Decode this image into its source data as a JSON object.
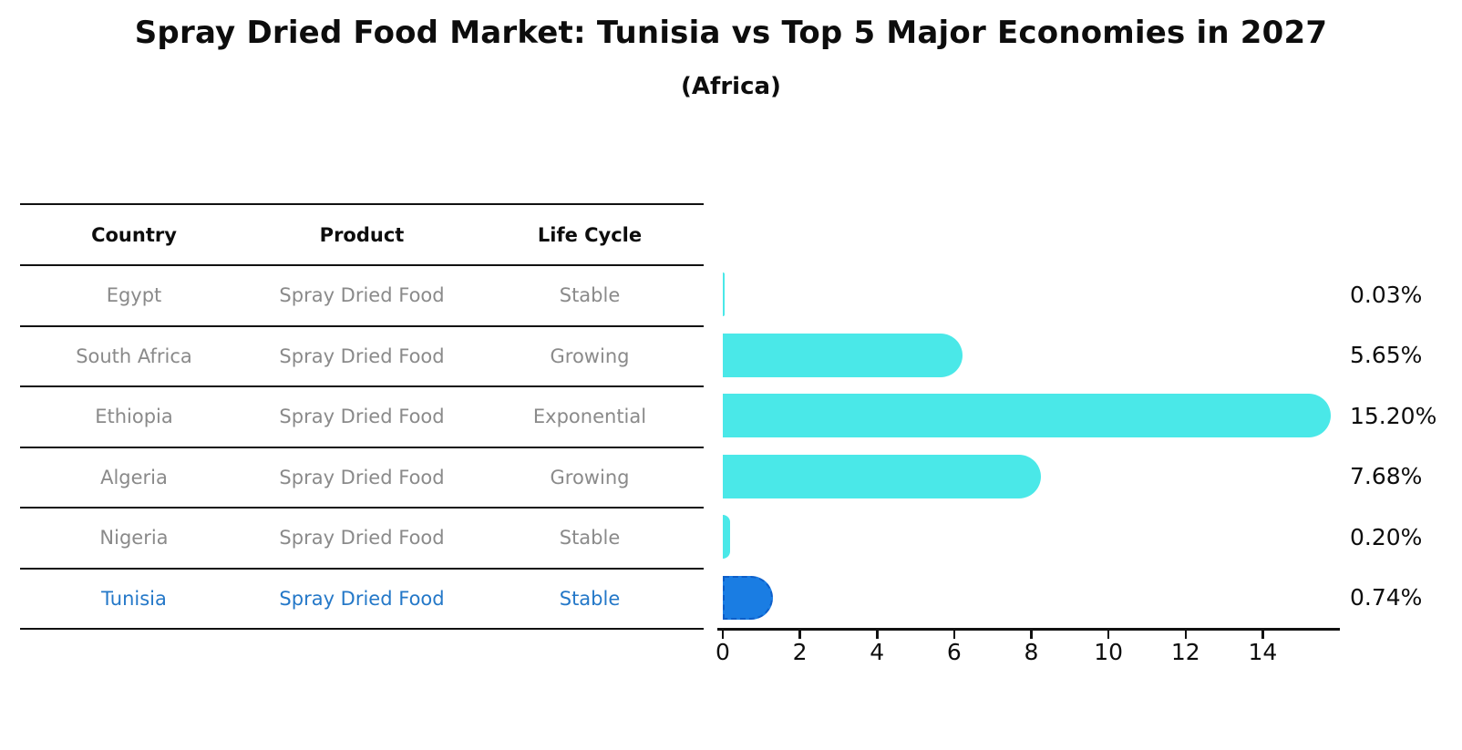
{
  "header": {
    "title": "Spray Dried Food Market: Tunisia vs Top 5 Major Economies in 2027",
    "subtitle": "(Africa)"
  },
  "table": {
    "columns": [
      "Country",
      "Product",
      "Life Cycle"
    ],
    "rows": [
      {
        "country": "Egypt",
        "product": "Spray Dried Food",
        "life_cycle": "Stable",
        "highlight": false
      },
      {
        "country": "South Africa",
        "product": "Spray Dried Food",
        "life_cycle": "Growing",
        "highlight": false
      },
      {
        "country": "Ethiopia",
        "product": "Spray Dried Food",
        "life_cycle": "Exponential",
        "highlight": false
      },
      {
        "country": "Algeria",
        "product": "Spray Dried Food",
        "life_cycle": "Growing",
        "highlight": false
      },
      {
        "country": "Nigeria",
        "product": "Spray Dried Food",
        "life_cycle": "Stable",
        "highlight": false
      },
      {
        "country": "Tunisia",
        "product": "Spray Dried Food",
        "life_cycle": "Stable",
        "highlight": true
      }
    ]
  },
  "chart_data": {
    "type": "bar",
    "orientation": "horizontal",
    "title": "Spray Dried Food Market: Tunisia vs Top 5 Major Economies in 2027 (Africa)",
    "categories": [
      "Egypt",
      "South Africa",
      "Ethiopia",
      "Algeria",
      "Nigeria",
      "Tunisia"
    ],
    "values": [
      0.03,
      5.65,
      15.2,
      7.68,
      0.2,
      0.74
    ],
    "value_labels": [
      "0.03%",
      "5.65%",
      "15.20%",
      "7.68%",
      "0.20%",
      "0.74%"
    ],
    "x_ticks": [
      0,
      2,
      4,
      6,
      8,
      10,
      12,
      14
    ],
    "xlim": [
      0,
      16
    ],
    "grid": false,
    "legend": "none",
    "bar_color": "#4AE8E8",
    "highlight_color": "#1A7DE3",
    "highlight_border_color": "#0d5ec9",
    "highlight_index": 5,
    "highlight_style": "dashed-border"
  }
}
